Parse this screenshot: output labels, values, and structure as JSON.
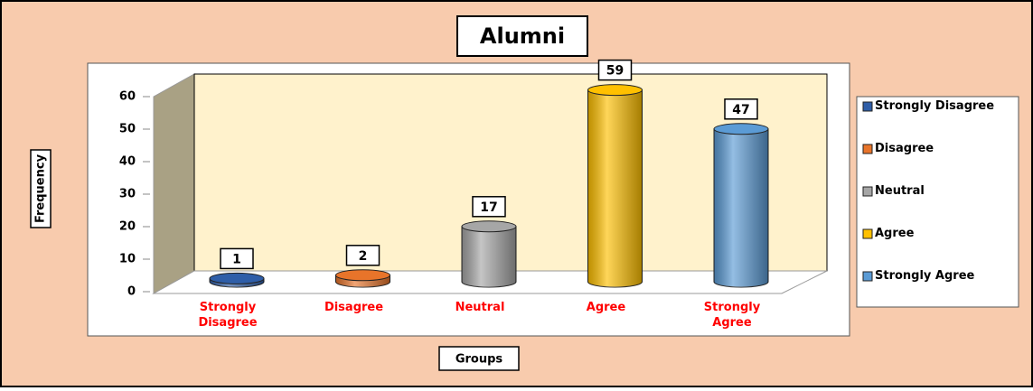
{
  "chart_data": {
    "type": "bar",
    "title": "Alumni",
    "x_label": "Groups",
    "y_label": "Frequency",
    "categories": [
      "Strongly Disagree",
      "Disagree",
      "Neutral",
      "Agree",
      "Strongly Agree"
    ],
    "values": [
      1,
      2,
      17,
      59,
      47
    ],
    "colors": [
      "#2f5ea8",
      "#e8742a",
      "#a6a6a6",
      "#ffc000",
      "#5b9bd5"
    ],
    "ylim": [
      0,
      60
    ],
    "yticks": [
      0,
      10,
      20,
      30,
      40,
      50,
      60
    ]
  }
}
